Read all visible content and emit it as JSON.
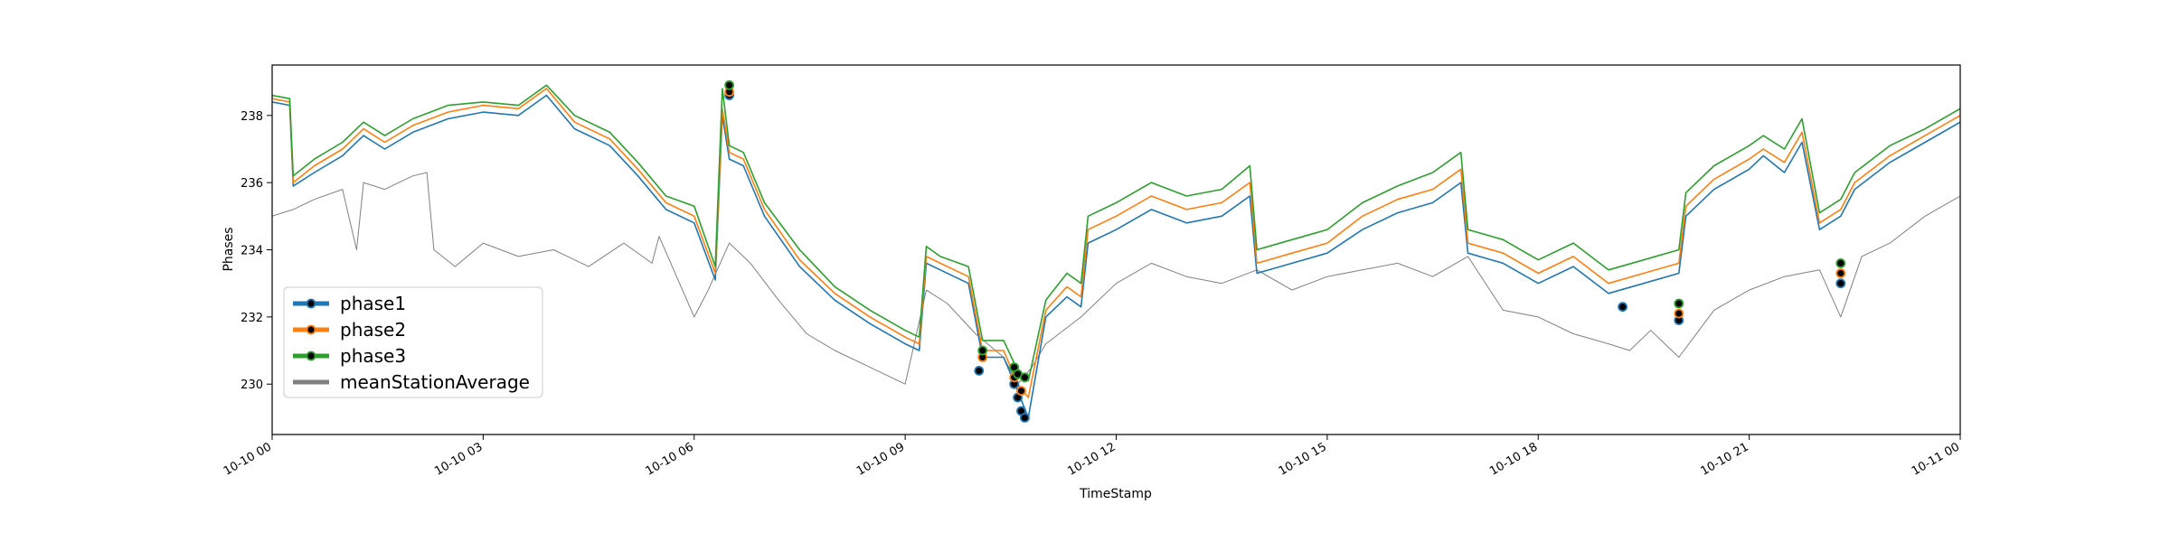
{
  "chart_data": {
    "type": "line",
    "title": "",
    "xlabel": "TimeStamp",
    "ylabel": "Phases",
    "x_range": [
      "2024-10-10 00:00",
      "2024-10-11 00:00"
    ],
    "ylim": [
      228.5,
      239.5
    ],
    "grid": false,
    "legend_position": "lower-left",
    "x_tick_labels": [
      "10-10 00",
      "10-10 03",
      "10-10 06",
      "10-10 09",
      "10-10 12",
      "10-10 15",
      "10-10 18",
      "10-10 21",
      "10-11 00"
    ],
    "x_tick_hours": [
      0,
      3,
      6,
      9,
      12,
      15,
      18,
      21,
      24
    ],
    "y_ticks": [
      230,
      232,
      234,
      236,
      238
    ],
    "series": [
      {
        "name": "phase1",
        "color": "#1f77b4",
        "x_hours": [
          0,
          0.25,
          0.3,
          0.6,
          1.0,
          1.3,
          1.6,
          2.0,
          2.5,
          3.0,
          3.5,
          3.9,
          4.3,
          4.8,
          5.2,
          5.6,
          6.0,
          6.3,
          6.4,
          6.5,
          6.7,
          7.0,
          7.5,
          8.0,
          8.5,
          9.0,
          9.2,
          9.3,
          9.5,
          9.9,
          10.1,
          10.4,
          10.6,
          10.75,
          11.0,
          11.3,
          11.5,
          11.6,
          12.0,
          12.5,
          13.0,
          13.5,
          13.9,
          14.0,
          14.5,
          15.0,
          15.5,
          16.0,
          16.5,
          16.9,
          17.0,
          17.5,
          18.0,
          18.5,
          19.0,
          19.5,
          20.0,
          20.1,
          20.5,
          21.0,
          21.2,
          21.5,
          21.75,
          22.0,
          22.3,
          22.5,
          23.0,
          23.5,
          24.0
        ],
        "values": [
          238.4,
          238.3,
          235.9,
          236.3,
          236.8,
          237.4,
          237.0,
          237.5,
          237.9,
          238.1,
          238.0,
          238.6,
          237.6,
          237.1,
          236.2,
          235.2,
          234.8,
          233.1,
          238.0,
          236.7,
          236.5,
          235.0,
          233.5,
          232.5,
          231.8,
          231.2,
          231.0,
          233.6,
          233.4,
          233.0,
          230.8,
          230.8,
          229.8,
          229.0,
          232.0,
          232.6,
          232.3,
          234.2,
          234.6,
          235.2,
          234.8,
          235.0,
          235.6,
          233.3,
          233.6,
          233.9,
          234.6,
          235.1,
          235.4,
          236.0,
          233.9,
          233.6,
          233.0,
          233.5,
          232.7,
          233.0,
          233.3,
          235.0,
          235.8,
          236.4,
          236.8,
          236.3,
          237.2,
          234.6,
          235.0,
          235.8,
          236.6,
          237.2,
          237.8
        ]
      },
      {
        "name": "phase2",
        "color": "#ff7f0e",
        "x_hours": [
          0,
          0.25,
          0.3,
          0.6,
          1.0,
          1.3,
          1.6,
          2.0,
          2.5,
          3.0,
          3.5,
          3.9,
          4.3,
          4.8,
          5.2,
          5.6,
          6.0,
          6.3,
          6.4,
          6.5,
          6.7,
          7.0,
          7.5,
          8.0,
          8.5,
          9.0,
          9.2,
          9.3,
          9.5,
          9.9,
          10.1,
          10.4,
          10.6,
          10.75,
          11.0,
          11.3,
          11.5,
          11.6,
          12.0,
          12.5,
          13.0,
          13.5,
          13.9,
          14.0,
          14.5,
          15.0,
          15.5,
          16.0,
          16.5,
          16.9,
          17.0,
          17.5,
          18.0,
          18.5,
          19.0,
          19.5,
          20.0,
          20.1,
          20.5,
          21.0,
          21.2,
          21.5,
          21.75,
          22.0,
          22.3,
          22.5,
          23.0,
          23.5,
          24.0
        ],
        "values": [
          238.5,
          238.4,
          236.0,
          236.5,
          237.0,
          237.6,
          237.2,
          237.7,
          238.1,
          238.3,
          238.2,
          238.8,
          237.8,
          237.3,
          236.4,
          235.4,
          235.0,
          233.3,
          238.2,
          236.9,
          236.7,
          235.2,
          233.7,
          232.7,
          232.0,
          231.4,
          231.2,
          233.8,
          233.6,
          233.2,
          231.0,
          231.0,
          230.0,
          229.6,
          232.2,
          232.9,
          232.6,
          234.6,
          235.0,
          235.6,
          235.2,
          235.4,
          236.0,
          233.6,
          233.9,
          234.2,
          235.0,
          235.5,
          235.8,
          236.4,
          234.2,
          233.9,
          233.3,
          233.8,
          233.0,
          233.3,
          233.6,
          235.3,
          236.1,
          236.7,
          237.0,
          236.6,
          237.5,
          234.8,
          235.2,
          236.0,
          236.8,
          237.4,
          238.0
        ]
      },
      {
        "name": "phase3",
        "color": "#2ca02c",
        "x_hours": [
          0,
          0.25,
          0.3,
          0.6,
          1.0,
          1.3,
          1.6,
          2.0,
          2.5,
          3.0,
          3.5,
          3.9,
          4.3,
          4.8,
          5.2,
          5.6,
          6.0,
          6.3,
          6.4,
          6.5,
          6.7,
          7.0,
          7.5,
          8.0,
          8.5,
          9.0,
          9.2,
          9.3,
          9.5,
          9.9,
          10.1,
          10.4,
          10.6,
          10.75,
          11.0,
          11.3,
          11.5,
          11.6,
          12.0,
          12.5,
          13.0,
          13.5,
          13.9,
          14.0,
          14.5,
          15.0,
          15.5,
          16.0,
          16.5,
          16.9,
          17.0,
          17.5,
          18.0,
          18.5,
          19.0,
          19.5,
          20.0,
          20.1,
          20.5,
          21.0,
          21.2,
          21.5,
          21.75,
          22.0,
          22.3,
          22.5,
          23.0,
          23.5,
          24.0
        ],
        "values": [
          238.6,
          238.5,
          236.2,
          236.7,
          237.2,
          237.8,
          237.4,
          237.9,
          238.3,
          238.4,
          238.3,
          238.9,
          238.0,
          237.5,
          236.6,
          235.6,
          235.3,
          233.5,
          238.8,
          237.1,
          236.9,
          235.4,
          234.0,
          232.9,
          232.2,
          231.6,
          231.4,
          234.1,
          233.8,
          233.5,
          231.3,
          231.3,
          230.4,
          230.1,
          232.5,
          233.3,
          233.0,
          235.0,
          235.4,
          236.0,
          235.6,
          235.8,
          236.5,
          234.0,
          234.3,
          234.6,
          235.4,
          235.9,
          236.3,
          236.9,
          234.6,
          234.3,
          233.7,
          234.2,
          233.4,
          233.7,
          234.0,
          235.7,
          236.5,
          237.1,
          237.4,
          237.0,
          237.9,
          235.1,
          235.5,
          236.3,
          237.1,
          237.6,
          238.2
        ]
      },
      {
        "name": "meanStationAverage",
        "color": "#808080",
        "x_hours": [
          0,
          0.3,
          0.6,
          1.0,
          1.2,
          1.3,
          1.6,
          2.0,
          2.2,
          2.3,
          2.6,
          3.0,
          3.5,
          4.0,
          4.5,
          5.0,
          5.4,
          5.5,
          6.0,
          6.2,
          6.5,
          6.8,
          7.2,
          7.6,
          8.0,
          8.5,
          9.0,
          9.3,
          9.6,
          10.0,
          10.4,
          10.6,
          10.8,
          11.0,
          11.5,
          12.0,
          12.5,
          13.0,
          13.5,
          14.0,
          14.5,
          15.0,
          15.5,
          16.0,
          16.5,
          17.0,
          17.5,
          18.0,
          18.5,
          19.0,
          19.3,
          19.6,
          20.0,
          20.5,
          21.0,
          21.5,
          22.0,
          22.3,
          22.6,
          23.0,
          23.5,
          24.0
        ],
        "values": [
          235.0,
          235.2,
          235.5,
          235.8,
          234.0,
          236.0,
          235.8,
          236.2,
          236.3,
          234.0,
          233.5,
          234.2,
          233.8,
          234.0,
          233.5,
          234.2,
          233.6,
          234.4,
          232.0,
          232.8,
          234.2,
          233.6,
          232.5,
          231.5,
          231.0,
          230.5,
          230.0,
          232.8,
          232.4,
          231.5,
          230.8,
          230.0,
          230.5,
          231.2,
          232.0,
          233.0,
          233.6,
          233.2,
          233.0,
          233.4,
          232.8,
          233.2,
          233.4,
          233.6,
          233.2,
          233.8,
          232.2,
          232.0,
          231.5,
          231.2,
          231.0,
          231.6,
          230.8,
          232.2,
          232.8,
          233.2,
          233.4,
          232.0,
          233.8,
          234.2,
          235.0,
          235.6
        ]
      }
    ],
    "markers": [
      {
        "series": "phase1",
        "points": [
          [
            6.5,
            238.6
          ],
          [
            10.05,
            230.4
          ],
          [
            10.55,
            230.0
          ],
          [
            10.6,
            229.6
          ],
          [
            10.65,
            229.2
          ],
          [
            10.7,
            229.0
          ],
          [
            19.2,
            232.3
          ],
          [
            20.0,
            231.9
          ],
          [
            22.3,
            233.0
          ]
        ]
      },
      {
        "series": "phase2",
        "points": [
          [
            6.5,
            238.7
          ],
          [
            10.1,
            230.8
          ],
          [
            10.55,
            230.2
          ],
          [
            10.65,
            229.8
          ],
          [
            20.0,
            232.1
          ],
          [
            22.3,
            233.3
          ]
        ]
      },
      {
        "series": "phase3",
        "points": [
          [
            6.5,
            238.9
          ],
          [
            10.1,
            231.0
          ],
          [
            10.55,
            230.5
          ],
          [
            10.6,
            230.3
          ],
          [
            10.7,
            230.2
          ],
          [
            20.0,
            232.4
          ],
          [
            22.3,
            233.6
          ]
        ]
      }
    ]
  }
}
